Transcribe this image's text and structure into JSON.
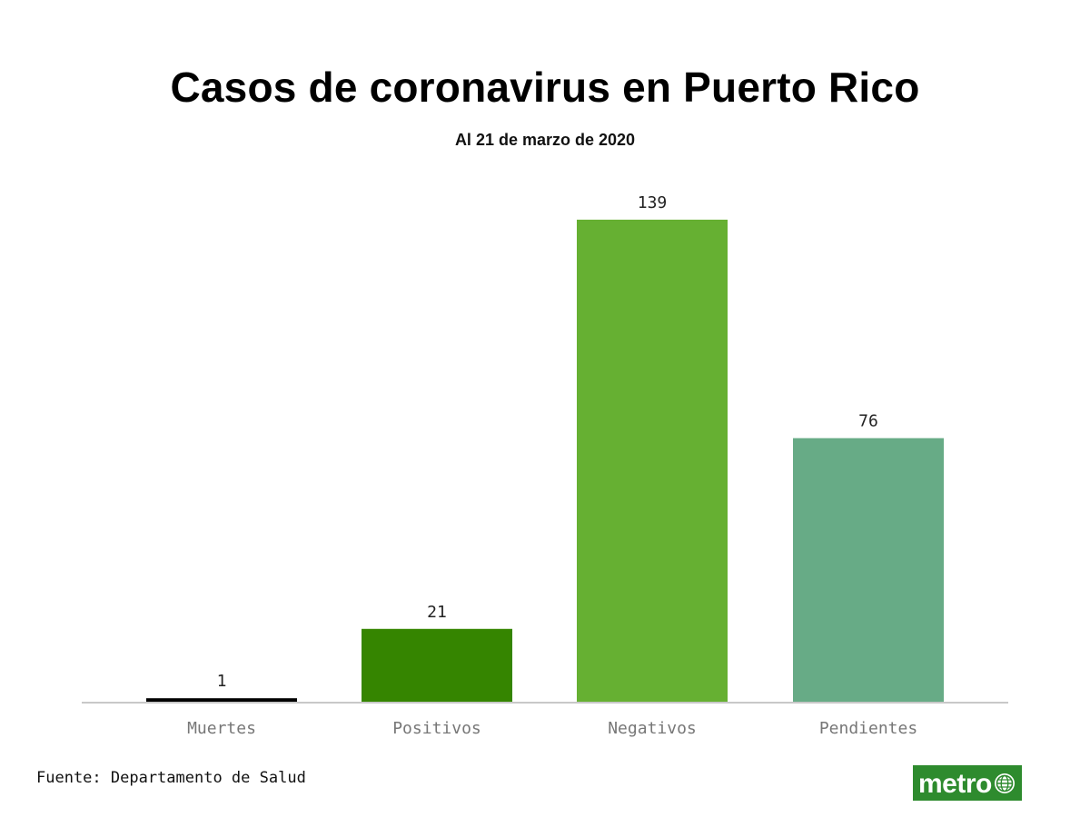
{
  "header": {
    "title": "Casos de coronavirus en Puerto Rico",
    "subtitle": "Al 21 de marzo de 2020"
  },
  "footer": {
    "source": "Fuente: Departamento de Salud"
  },
  "logo": {
    "text": "metro",
    "background": "#2e8b2e"
  },
  "chart_data": {
    "type": "bar",
    "title": "Casos de coronavirus en Puerto Rico",
    "subtitle": "Al 21 de marzo de 2020",
    "xlabel": "",
    "ylabel": "",
    "categories": [
      "Muertes",
      "Positivos",
      "Negativos",
      "Pendientes"
    ],
    "values": [
      1,
      21,
      139,
      76
    ],
    "colors": [
      "#000000",
      "#358500",
      "#66b032",
      "#67ab86"
    ],
    "ylim": [
      0,
      139
    ],
    "grid": false,
    "legend": "none",
    "data_labels": true
  }
}
